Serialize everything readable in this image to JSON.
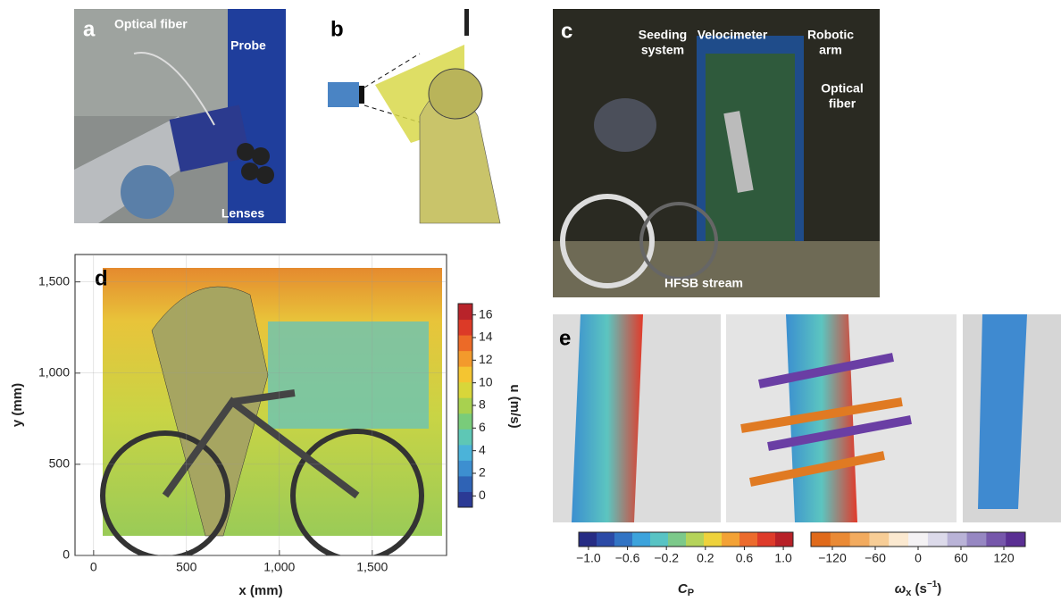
{
  "panels": {
    "a": {
      "label": "a",
      "annotations": [
        "Optical fiber",
        "Probe",
        "Lenses"
      ]
    },
    "b": {
      "label": "b"
    },
    "c": {
      "label": "c",
      "annotations": [
        {
          "lines": [
            "Seeding",
            "system"
          ]
        },
        {
          "lines": [
            "Velocimeter"
          ]
        },
        {
          "lines": [
            "Robotic",
            "arm"
          ]
        },
        {
          "lines": [
            "Optical",
            "fiber"
          ]
        },
        {
          "lines": [
            "HFSB stream"
          ]
        }
      ]
    },
    "d": {
      "label": "d",
      "xlabel": "x (mm)",
      "ylabel": "y (mm)",
      "xlim": [
        -100,
        1900
      ],
      "xticks": [
        0,
        500,
        {
          "value": 1000,
          "label": "1,000"
        },
        {
          "value": 1500,
          "label": "1,500"
        }
      ],
      "ylim": [
        0,
        1650
      ],
      "yticks": [
        0,
        500,
        {
          "value": 1000,
          "label": "1,000"
        },
        {
          "value": 1500,
          "label": "1,500"
        }
      ],
      "colorbar": {
        "label": "u (m/s)",
        "lim": [
          -1,
          17
        ],
        "ticks": [
          0,
          2,
          4,
          6,
          8,
          10,
          12,
          14,
          16
        ],
        "colors": [
          "#2b3a95",
          "#2f63b5",
          "#3d8fd0",
          "#4bb3d9",
          "#5ec7b5",
          "#79cc7a",
          "#a8d14f",
          "#d8d63a",
          "#f4c531",
          "#f39a2c",
          "#ec6a27",
          "#dc3a27",
          "#b8232a"
        ]
      }
    },
    "e": {
      "label": "e",
      "cp_colorbar": {
        "symbol": "C",
        "subscript": "P",
        "lim": [
          -1.1,
          1.1
        ],
        "ticks": [
          {
            "value": -1.0,
            "label": "−1.0"
          },
          {
            "value": -0.6,
            "label": "−0.6"
          },
          {
            "value": -0.2,
            "label": "−0.2"
          },
          0.2,
          0.6,
          {
            "value": 1.0,
            "label": "1.0"
          }
        ],
        "colors": [
          "#262c84",
          "#2b4aa6",
          "#3274c4",
          "#3ca3dc",
          "#58c3c4",
          "#7cc98a",
          "#b5d35a",
          "#eed23c",
          "#f3a236",
          "#ec6b2d",
          "#de3b2a",
          "#b82128"
        ]
      },
      "w_colorbar": {
        "symbol": "ω",
        "subscript": "x",
        "unit": " (s",
        "exponent": "−1",
        "unit_end": ")",
        "lim": [
          -150,
          150
        ],
        "ticks": [
          {
            "value": -120,
            "label": "−120"
          },
          {
            "value": -60,
            "label": "−60"
          },
          0,
          60,
          120
        ],
        "colors": [
          "#e06a1b",
          "#ea8a35",
          "#f2ab5f",
          "#f7cd96",
          "#fbe9d0",
          "#f4f2f4",
          "#dcdaea",
          "#b9b3d7",
          "#9687c2",
          "#7657ab",
          "#5a2f93"
        ]
      }
    }
  }
}
